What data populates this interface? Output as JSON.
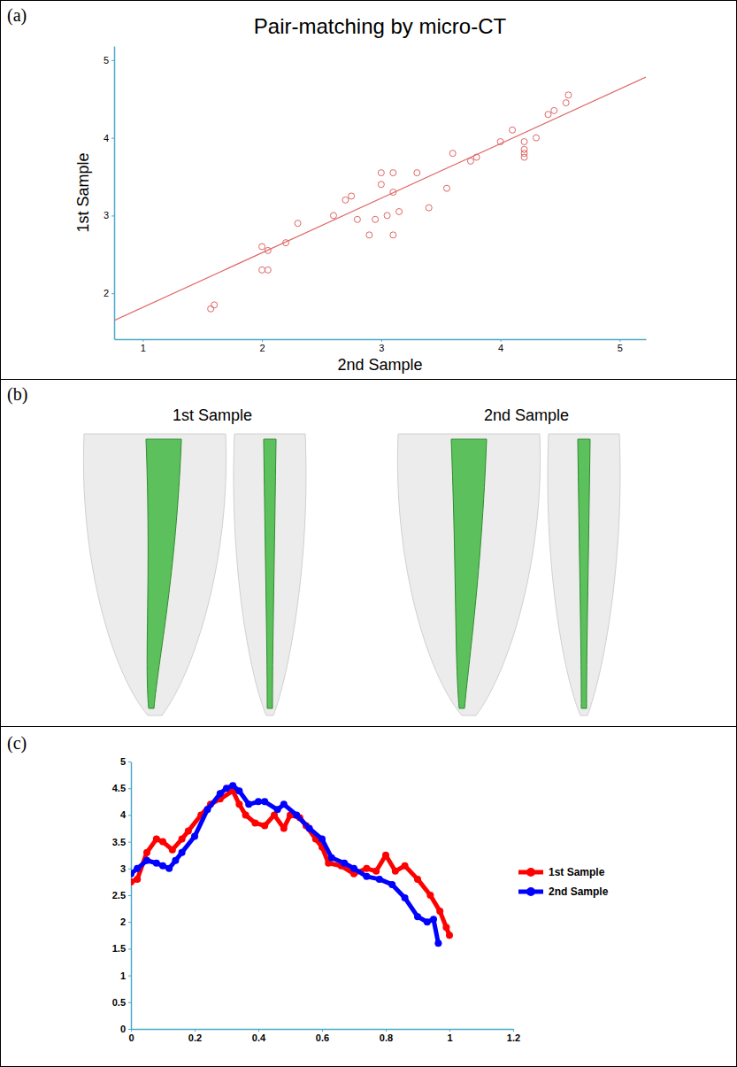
{
  "chart_data": [
    {
      "type": "scatter",
      "panel_label": "(a)",
      "title": "Pair-matching by micro-CT",
      "x_label": "2nd Sample",
      "y_label": "1st Sample",
      "xlim": [
        0.76,
        5.22
      ],
      "ylim": [
        1.41,
        5.18
      ],
      "xticks": [
        1,
        2,
        3,
        4,
        5
      ],
      "yticks": [
        2,
        3,
        4,
        5
      ],
      "series": [
        {
          "type": "scatter",
          "marker": "circle",
          "color": "#e06666",
          "x": [
            2.9,
            3.1,
            3.1,
            3.0,
            3.3,
            3.6,
            4.1,
            4.4,
            4.55,
            4.3,
            4.2,
            4.2,
            4.2,
            4.0,
            3.75,
            3.55,
            3.15,
            3.05,
            2.95,
            2.8,
            2.75,
            2.6,
            2.3,
            2.05,
            2.05,
            1.6,
            1.57,
            2.0,
            2.0,
            3.0,
            3.1,
            4.2,
            4.57,
            2.7,
            3.4,
            3.8,
            2.2,
            4.45
          ],
          "values": [
            2.75,
            3.3,
            3.55,
            3.4,
            3.55,
            3.8,
            4.1,
            4.3,
            4.45,
            4.0,
            3.85,
            3.95,
            3.75,
            3.95,
            3.7,
            3.35,
            3.05,
            3.0,
            2.95,
            2.95,
            3.25,
            3.0,
            2.9,
            2.55,
            2.3,
            1.85,
            1.8,
            2.6,
            2.3,
            3.55,
            2.75,
            3.8,
            4.55,
            3.2,
            3.1,
            3.75,
            2.65,
            4.35
          ]
        },
        {
          "type": "line",
          "color": "#e06666",
          "x": [
            0.76,
            5.22
          ],
          "values": [
            1.65,
            4.78
          ]
        }
      ]
    },
    {
      "type": "line",
      "panel_label": "(c)",
      "xlim": [
        0,
        1.2
      ],
      "ylim": [
        0,
        5
      ],
      "xticks": [
        0,
        0.2,
        0.4,
        0.6,
        0.8,
        1,
        1.2
      ],
      "yticks": [
        0,
        0.5,
        1,
        1.5,
        2,
        2.5,
        3,
        3.5,
        4,
        4.5,
        5
      ],
      "legend": "right",
      "series": [
        {
          "name": "1st Sample",
          "color": "#ff0000",
          "marker": "circle",
          "x": [
            0,
            0.02,
            0.05,
            0.08,
            0.1,
            0.13,
            0.16,
            0.18,
            0.22,
            0.25,
            0.28,
            0.32,
            0.34,
            0.36,
            0.39,
            0.42,
            0.45,
            0.48,
            0.5,
            0.53,
            0.55,
            0.58,
            0.6,
            0.62,
            0.66,
            0.7,
            0.74,
            0.77,
            0.8,
            0.83,
            0.86,
            0.9,
            0.94,
            0.97,
            0.99,
            1.0
          ],
          "values": [
            2.75,
            2.8,
            3.3,
            3.55,
            3.5,
            3.35,
            3.55,
            3.7,
            4.0,
            4.2,
            4.3,
            4.45,
            4.2,
            4.0,
            3.85,
            3.8,
            4.0,
            3.75,
            4.0,
            3.95,
            3.8,
            3.55,
            3.4,
            3.1,
            3.05,
            2.9,
            3.0,
            2.95,
            3.25,
            2.95,
            3.05,
            2.8,
            2.5,
            2.2,
            1.9,
            1.75
          ]
        },
        {
          "name": "2nd Sample",
          "color": "#0000ff",
          "marker": "circle",
          "x": [
            0,
            0.02,
            0.05,
            0.08,
            0.1,
            0.12,
            0.14,
            0.16,
            0.2,
            0.24,
            0.28,
            0.3,
            0.32,
            0.34,
            0.37,
            0.4,
            0.42,
            0.46,
            0.48,
            0.52,
            0.56,
            0.6,
            0.63,
            0.67,
            0.7,
            0.74,
            0.78,
            0.82,
            0.86,
            0.9,
            0.93,
            0.95,
            0.965
          ],
          "values": [
            2.9,
            3.0,
            3.15,
            3.1,
            3.05,
            3.0,
            3.15,
            3.3,
            3.6,
            4.1,
            4.4,
            4.5,
            4.55,
            4.45,
            4.2,
            4.25,
            4.25,
            4.1,
            4.2,
            4.0,
            3.75,
            3.55,
            3.2,
            3.1,
            3.0,
            2.85,
            2.8,
            2.7,
            2.45,
            2.1,
            2.0,
            2.05,
            1.6
          ]
        }
      ]
    }
  ],
  "figure_b": {
    "panel_label": "(b)",
    "labels": [
      "1st Sample",
      "2nd Sample"
    ]
  }
}
